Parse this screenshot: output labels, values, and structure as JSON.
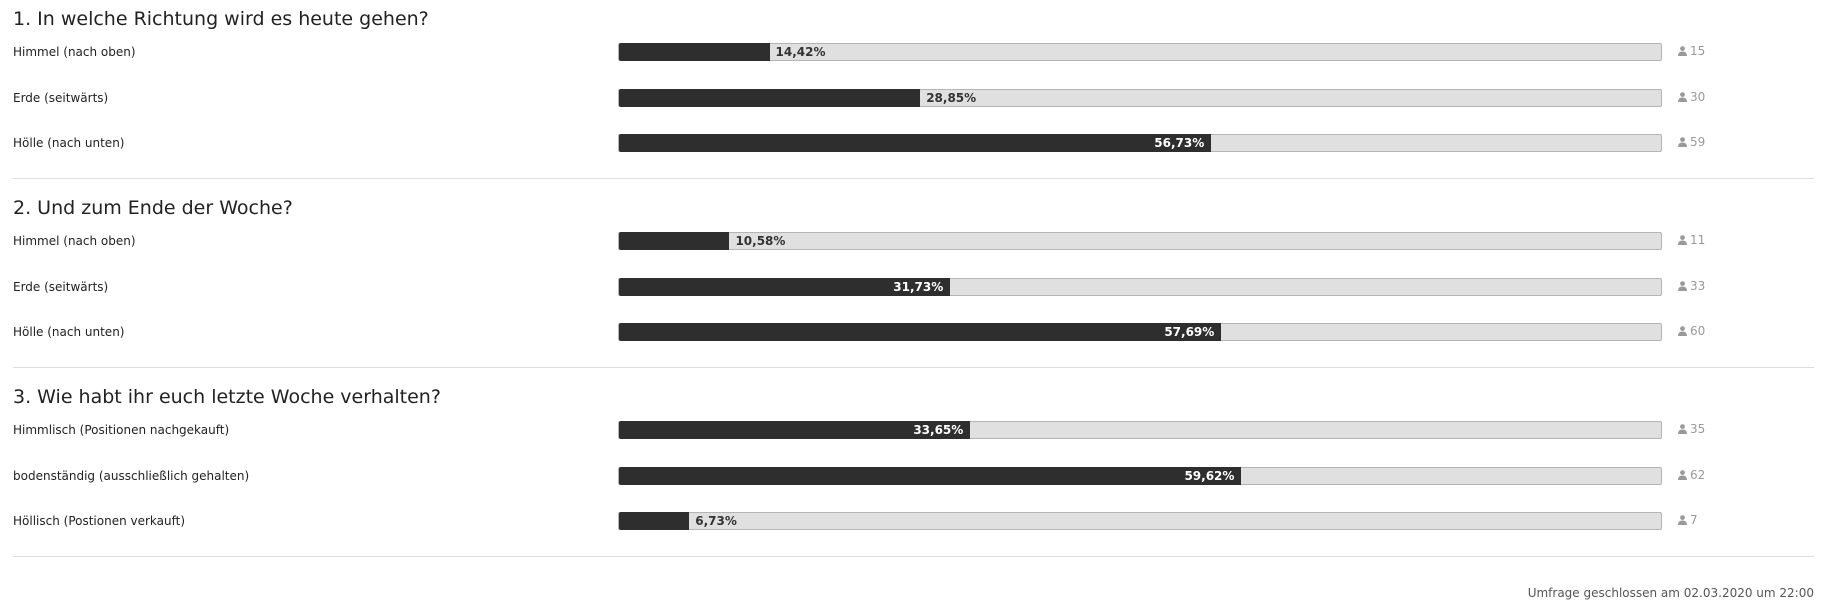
{
  "questions": [
    {
      "title": "1. In welche Richtung wird es heute gehen?",
      "options": [
        {
          "label": "Himmel (nach oben)",
          "percent": {
            "value": 14.42,
            "label": "14,42%"
          },
          "votes": 15
        },
        {
          "label": "Erde (seitwärts)",
          "percent": {
            "value": 28.85,
            "label": "28,85%"
          },
          "votes": 30
        },
        {
          "label": "Hölle (nach unten)",
          "percent": {
            "value": 56.73,
            "label": "56,73%"
          },
          "votes": 59
        }
      ]
    },
    {
      "title": "2. Und zum Ende der Woche?",
      "options": [
        {
          "label": "Himmel (nach oben)",
          "percent": {
            "value": 10.58,
            "label": "10,58%"
          },
          "votes": 11
        },
        {
          "label": "Erde (seitwärts)",
          "percent": {
            "value": 31.73,
            "label": "31,73%"
          },
          "votes": 33
        },
        {
          "label": "Hölle (nach unten)",
          "percent": {
            "value": 57.69,
            "label": "57,69%"
          },
          "votes": 60
        }
      ]
    },
    {
      "title": "3. Wie habt ihr euch letzte Woche verhalten?",
      "options": [
        {
          "label": "Himmlisch (Positionen nachgekauft)",
          "percent": {
            "value": 33.65,
            "label": "33,65%"
          },
          "votes": 35
        },
        {
          "label": "bodenständig (ausschließlich gehalten)",
          "percent": {
            "value": 59.62,
            "label": "59,62%"
          },
          "votes": 62
        },
        {
          "label": "Höllisch (Postionen verkauft)",
          "percent": {
            "value": 6.73,
            "label": "6,73%"
          },
          "votes": 7
        }
      ]
    }
  ],
  "footer": "Umfrage geschlossen am 02.03.2020 um 22:00"
}
